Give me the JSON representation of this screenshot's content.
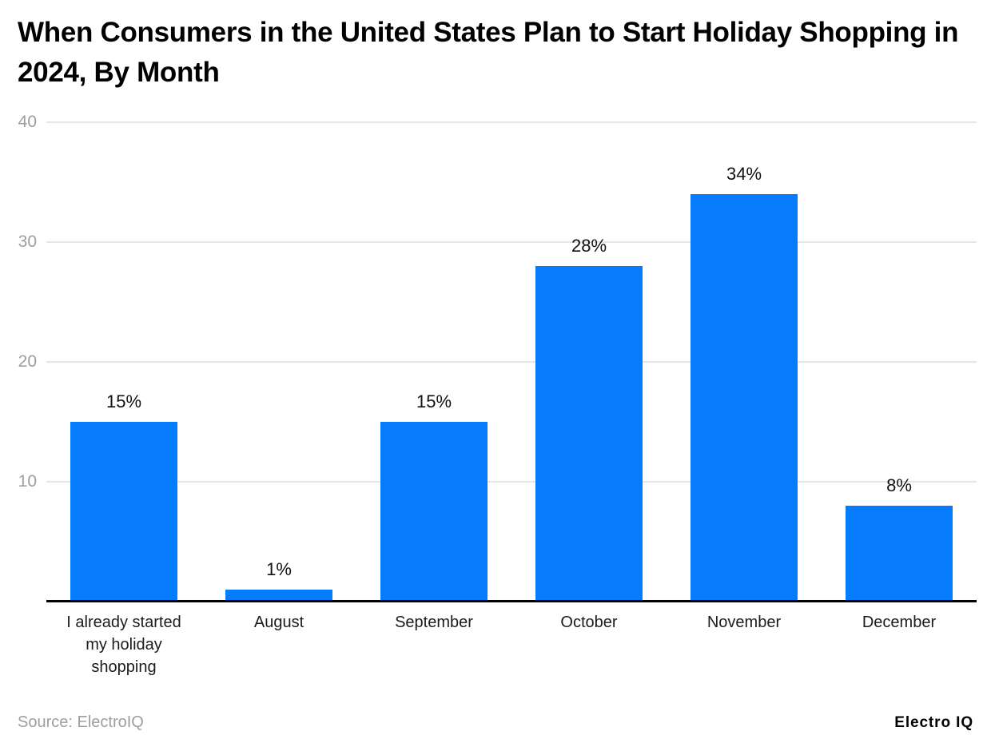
{
  "page": {
    "background": "#ffffff"
  },
  "header": {
    "title": "When Consumers in the United States Plan to Start Holiday Shopping in 2024, By Month"
  },
  "footer": {
    "source": "Source: ElectroIQ",
    "brand": "Electro IQ"
  },
  "colors": {
    "bar": "#067bfc",
    "gridline": "#e6e6e6",
    "axis": "#000000",
    "ytick_text": "#9e9e9e",
    "xlabel_text": "#1b1b1b",
    "value_text": "#111111",
    "title_text": "#000000",
    "source_text": "#9e9e9e"
  },
  "chart_data": {
    "type": "bar",
    "title": "When Consumers in the United States Plan to Start Holiday Shopping in 2024, By Month",
    "categories": [
      "I already started my holiday shopping",
      "August",
      "September",
      "October",
      "November",
      "December"
    ],
    "category_lines": [
      [
        "I already started",
        "my holiday",
        "shopping"
      ],
      [
        "August"
      ],
      [
        "September"
      ],
      [
        "October"
      ],
      [
        "November"
      ],
      [
        "December"
      ]
    ],
    "values": [
      15,
      1,
      15,
      28,
      34,
      8
    ],
    "value_labels": [
      "15%",
      "1%",
      "15%",
      "28%",
      "34%",
      "8%"
    ],
    "unit": "percent",
    "xlabel": "",
    "ylabel": "",
    "ylim": [
      0,
      40
    ],
    "yticks": [
      10,
      20,
      30,
      40
    ],
    "grid": true,
    "legend": false,
    "bar_color": "#067bfc"
  }
}
